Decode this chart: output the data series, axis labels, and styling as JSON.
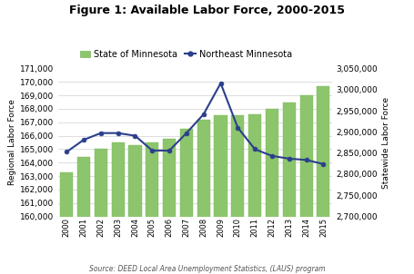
{
  "title": "Figure 1: Available Labor Force, 2000-2015",
  "years": [
    2000,
    2001,
    2002,
    2003,
    2004,
    2005,
    2006,
    2007,
    2008,
    2009,
    2010,
    2011,
    2012,
    2013,
    2014,
    2015
  ],
  "state_bars": [
    163300,
    164400,
    165000,
    165500,
    165300,
    165500,
    165800,
    166500,
    167200,
    167500,
    167500,
    167600,
    168000,
    168500,
    169000,
    169700
  ],
  "northeast_line": [
    164800,
    165700,
    166200,
    166200,
    166000,
    164900,
    164900,
    166200,
    167600,
    169900,
    166600,
    165000,
    164500,
    164300,
    164200,
    163900
  ],
  "bar_color": "#8dc56c",
  "bar_edge_color": "#7ab85a",
  "line_color": "#2b3f8c",
  "left_ylim": [
    160000,
    171000
  ],
  "left_yticks": [
    160000,
    161000,
    162000,
    163000,
    164000,
    165000,
    166000,
    167000,
    168000,
    169000,
    170000,
    171000
  ],
  "right_ylim": [
    2700000,
    3050000
  ],
  "right_yticks": [
    2700000,
    2750000,
    2800000,
    2850000,
    2900000,
    2950000,
    3000000,
    3050000
  ],
  "ylabel_left": "Regional Labor Force",
  "ylabel_right": "Statewide Labor Force",
  "source_text": "Source: DEED Local Area Unemployment Statistics, (LAUS) program",
  "legend_labels": [
    "State of Minnesota",
    "Northeast Minnesota"
  ],
  "background_color": "#ffffff",
  "grid_color": "#d0d0d0"
}
